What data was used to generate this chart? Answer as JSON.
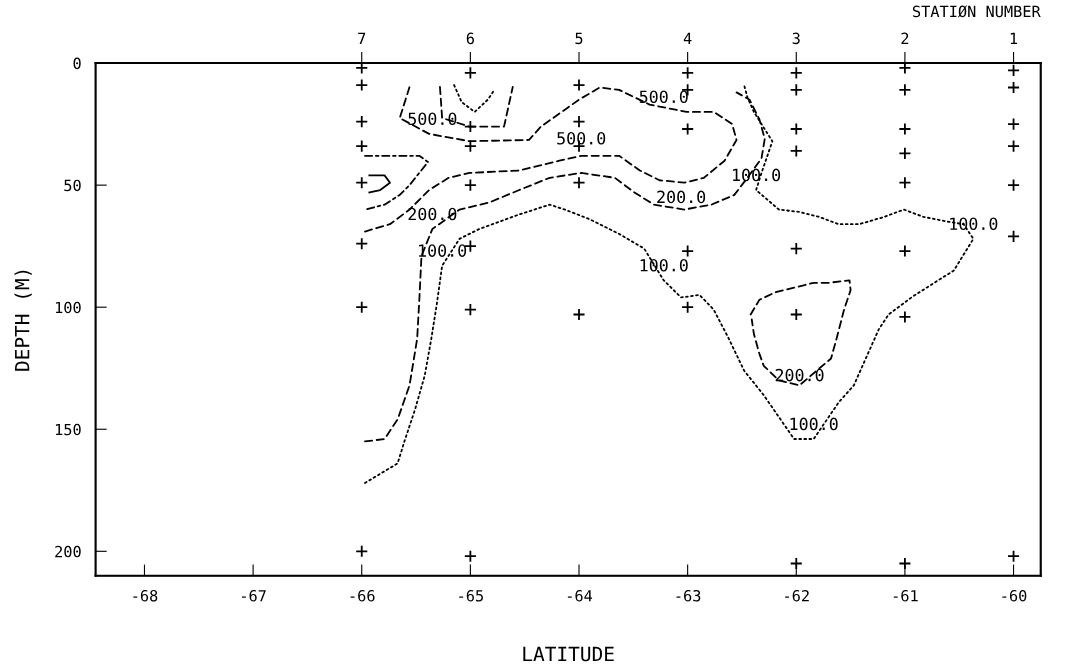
{
  "chart_data": {
    "type": "line",
    "xlabel": "LATITUDE",
    "ylabel": "DEPTH (M)",
    "x2label": "STATIØN NUMBER",
    "xlim": [
      -68.45,
      -59.75
    ],
    "xticks": [
      -68,
      -67,
      -66,
      -65,
      -64,
      -63,
      -62,
      -61,
      -60
    ],
    "ylim": [
      210,
      0
    ],
    "yticks": [
      0,
      50,
      100,
      150,
      200
    ],
    "x2lim": [
      9.45,
      0.75
    ],
    "x2ticks": [
      7,
      6,
      5,
      4,
      3,
      2,
      1
    ],
    "grid": false,
    "legend": false,
    "series": [
      {
        "type": "scatter",
        "marker": "cross",
        "color": "#000000",
        "x": [
          -66,
          -66,
          -66,
          -66,
          -66,
          -66,
          -66,
          -66,
          -65,
          -65,
          -65,
          -65,
          -65,
          -65,
          -65,
          -64,
          -64,
          -64,
          -64,
          -64,
          -63,
          -63,
          -63,
          -63,
          -63,
          -62,
          -62,
          -62,
          -62,
          -62,
          -62,
          -62,
          -61,
          -61,
          -61,
          -61,
          -61,
          -61,
          -61,
          -61,
          -60,
          -60,
          -60,
          -60,
          -60,
          -60,
          -60
        ],
        "values": [
          2,
          9,
          24,
          34,
          49,
          74,
          100,
          200,
          4,
          26,
          34,
          50,
          75,
          101,
          202,
          9,
          24,
          34,
          49,
          103,
          4,
          11,
          27,
          77,
          100,
          4,
          11,
          27,
          36,
          76,
          103,
          205,
          2,
          11,
          27,
          37,
          49,
          77,
          104,
          205,
          3,
          10,
          25,
          34,
          50,
          71,
          202
        ]
      },
      {
        "line_style": "dashed",
        "color": "#000000",
        "x": [
          -65.97,
          -65.74,
          -65.56,
          -65.38,
          -65.2,
          -65.01,
          -64.55,
          -64.18,
          -63.98,
          -63.63,
          -63.44,
          -63.26,
          -63.03,
          -62.85,
          -62.66,
          -62.55,
          -62.59,
          -62.76,
          -63.01,
          -63.35,
          -63.63,
          -63.81,
          -64.0,
          -64.35,
          -64.46,
          -65.01,
          -65.38,
          -65.65,
          -65.56
        ],
        "values": [
          69,
          66,
          60,
          52,
          47,
          45,
          44,
          40,
          38,
          38,
          44,
          48,
          49,
          47,
          40,
          31.5,
          25,
          20,
          20,
          17,
          11,
          10,
          15,
          26,
          31.5,
          32,
          29,
          22.5,
          9.8
        ]
      },
      {
        "line_style": "dashed",
        "color": "#000000",
        "x": [
          -65.28,
          -65.26,
          -65.01,
          -64.69,
          -64.61
        ],
        "values": [
          9.8,
          22.5,
          26,
          26,
          9.8
        ]
      },
      {
        "line_style": "dotted",
        "color": "#000000",
        "x": [
          -65.15,
          -65.08,
          -64.96,
          -64.84,
          -64.78
        ],
        "values": [
          9,
          16,
          20,
          15,
          11
        ]
      },
      {
        "line_style": "dashdot",
        "color": "#000000",
        "x": [
          -65.97,
          -65.47,
          -65.39,
          -65.56,
          -65.65,
          -65.79,
          -65.97
        ],
        "values": [
          38,
          38,
          40.5,
          50,
          54,
          58,
          60
        ]
      },
      {
        "line_style": "solid",
        "color": "#000000",
        "x": [
          -65.93,
          -65.79,
          -65.74,
          -65.83,
          -65.93
        ],
        "values": [
          46,
          46,
          49,
          52,
          53
        ]
      },
      {
        "line_style": "dashed",
        "color": "#000000",
        "x": [
          -65.97,
          -65.79,
          -65.67,
          -65.56,
          -65.49,
          -65.47,
          -65.45,
          -65.35,
          -65.1,
          -64.82,
          -64.55,
          -64.27,
          -63.98,
          -63.67,
          -63.49,
          -63.31,
          -63.03,
          -62.78,
          -62.57,
          -62.45,
          -62.32,
          -62.29,
          -62.34,
          -62.43,
          -62.55
        ],
        "values": [
          155,
          154,
          146,
          132,
          113,
          97,
          79,
          68,
          60,
          57,
          52,
          47,
          45,
          47,
          53,
          58,
          60,
          58,
          54,
          47,
          39,
          31,
          23,
          15,
          12
        ]
      },
      {
        "line_style": "dotted",
        "color": "#000000",
        "x": [
          -65.97,
          -65.67,
          -65.6,
          -65.51,
          -65.42,
          -65.36,
          -65.31,
          -65.26,
          -65.1,
          -64.92,
          -64.55,
          -64.27,
          -64.13,
          -63.9,
          -63.63,
          -63.4,
          -63.22,
          -63.06,
          -62.89,
          -62.76,
          -62.62,
          -62.48,
          -62.3,
          -62.02,
          -61.84,
          -61.61,
          -61.47,
          -61.36,
          -61.24,
          -61.15,
          -60.94,
          -60.73,
          -60.55,
          -60.37,
          -60.46,
          -60.6,
          -60.83,
          -61.01,
          -61.19,
          -61.42,
          -61.61,
          -61.79,
          -61.97,
          -62.16,
          -62.37,
          -62.32,
          -62.22,
          -62.32,
          -62.39,
          -62.45,
          -62.48
        ],
        "values": [
          172,
          164,
          154,
          142,
          128,
          113,
          99,
          83,
          72,
          68,
          62,
          58,
          60,
          64,
          70,
          76,
          89,
          96,
          95,
          101,
          113,
          126,
          136,
          154,
          154,
          139,
          132,
          121,
          109,
          103,
          96,
          90,
          85,
          72,
          66,
          65,
          63,
          60,
          63,
          66,
          66,
          63,
          61,
          60,
          52,
          45,
          32,
          25,
          20,
          14,
          9
        ]
      },
      {
        "line_style": "dashed",
        "color": "#000000",
        "x": [
          -62.42,
          -62.34,
          -62.2,
          -62.02,
          -61.84,
          -61.7,
          -61.51,
          -61.5,
          -61.56,
          -61.63,
          -61.68,
          -61.97,
          -62.16,
          -62.3,
          -62.34,
          -62.39,
          -62.41
        ],
        "values": [
          103,
          97,
          94,
          92,
          90,
          90,
          89,
          93,
          101,
          113,
          121,
          132,
          130,
          124,
          119,
          111,
          105
        ]
      }
    ],
    "annotations": [
      {
        "text": "500.0",
        "x": -65.35,
        "y": 29
      },
      {
        "text": "500.0",
        "x": -63.98,
        "y": 37
      },
      {
        "text": "500.0",
        "x": -63.22,
        "y": 20
      },
      {
        "text": "200.0",
        "x": -65.35,
        "y": 68
      },
      {
        "text": "200.0",
        "x": -63.06,
        "y": 61
      },
      {
        "text": "200.0",
        "x": -61.97,
        "y": 134
      },
      {
        "text": "100.0",
        "x": -65.26,
        "y": 83
      },
      {
        "text": "100.0",
        "x": -63.22,
        "y": 89
      },
      {
        "text": "100.0",
        "x": -62.37,
        "y": 52
      },
      {
        "text": "100.0",
        "x": -61.84,
        "y": 154
      },
      {
        "text": "100.0",
        "x": -60.37,
        "y": 72
      }
    ]
  }
}
